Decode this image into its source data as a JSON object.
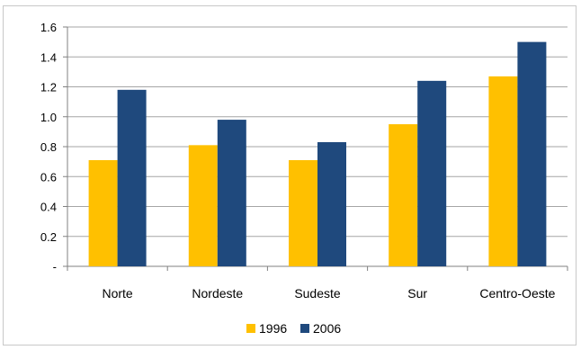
{
  "chart_data": {
    "type": "bar",
    "categories": [
      "Norte",
      "Nordeste",
      "Sudeste",
      "Sur",
      "Centro-Oeste"
    ],
    "series": [
      {
        "name": "1996",
        "color": "#FFC000",
        "values": [
          0.71,
          0.81,
          0.71,
          0.95,
          1.27
        ]
      },
      {
        "name": "2006",
        "color": "#1F497D",
        "values": [
          1.18,
          0.98,
          0.83,
          1.24,
          1.5
        ]
      }
    ],
    "y_ticks": [
      {
        "value": 0,
        "label": "-"
      },
      {
        "value": 0.2,
        "label": "0.2"
      },
      {
        "value": 0.4,
        "label": "0.4"
      },
      {
        "value": 0.6,
        "label": "0.6"
      },
      {
        "value": 0.8,
        "label": "0.8"
      },
      {
        "value": 1.0,
        "label": "1.0"
      },
      {
        "value": 1.2,
        "label": "1.2"
      },
      {
        "value": 1.4,
        "label": "1.4"
      },
      {
        "value": 1.6,
        "label": "1.6"
      }
    ],
    "ylim": [
      0,
      1.6
    ],
    "grid": true,
    "legend_position": "bottom",
    "title": "",
    "xlabel": "",
    "ylabel": ""
  }
}
